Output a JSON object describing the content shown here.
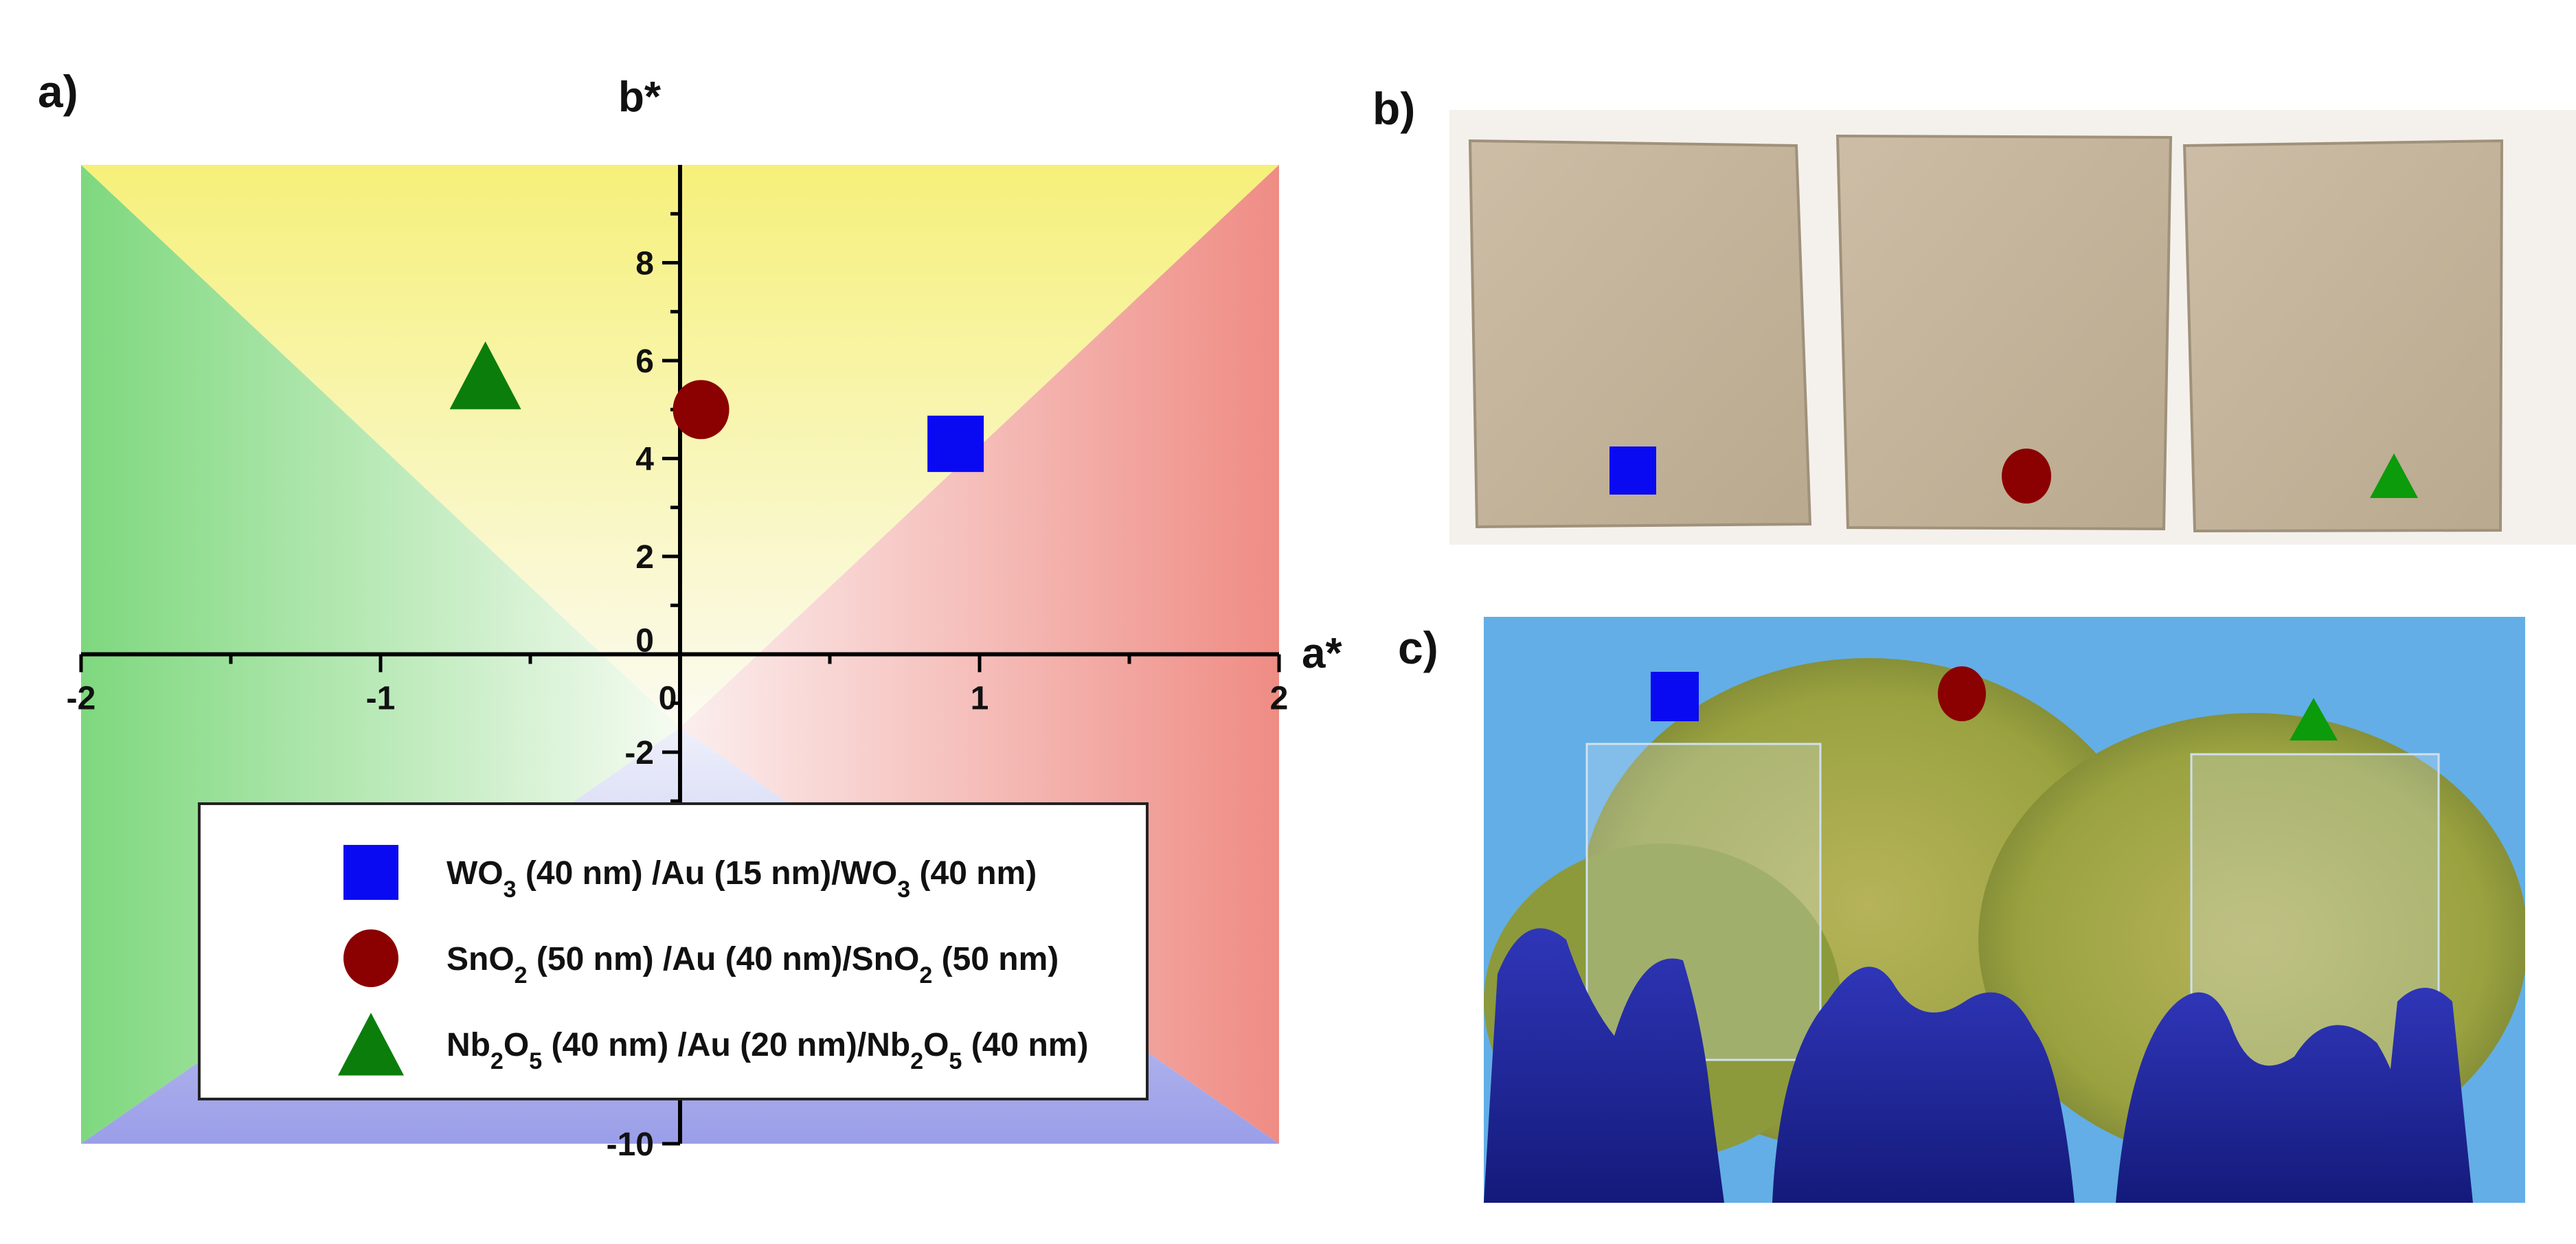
{
  "panels": {
    "a_label": "a)",
    "b_label": "b)",
    "c_label": "c)"
  },
  "chart_data": {
    "type": "scatter",
    "xlabel": "a*",
    "ylabel": "b*",
    "xlim": [
      -2,
      2
    ],
    "ylim": [
      -10,
      10
    ],
    "x_ticks": [
      -2,
      -1,
      0,
      1,
      2
    ],
    "y_ticks": [
      -10,
      -2,
      0,
      2,
      4,
      6,
      8
    ],
    "grid": false,
    "legend_position": "bottom-center",
    "background_regions": [
      {
        "name": "green",
        "color": "#7ed87e"
      },
      {
        "name": "yellow",
        "color": "#f6f07a"
      },
      {
        "name": "red",
        "color": "#f08f86"
      },
      {
        "name": "blue",
        "color": "#9a9ee8"
      }
    ],
    "series": [
      {
        "name": "WO3 (40 nm) /Au (15 nm)/WO3 (40 nm)",
        "marker": "square",
        "color": "#0a0af2",
        "points": [
          {
            "x": 0.92,
            "y": 4.3
          }
        ]
      },
      {
        "name": "SnO2 (50 nm) /Au (40 nm)/SnO2 (50 nm)",
        "marker": "circle",
        "color": "#8b0000",
        "points": [
          {
            "x": 0.07,
            "y": 5.0
          }
        ]
      },
      {
        "name": "Nb2O5 (40 nm) /Au (20 nm)/Nb2O5 (40 nm)",
        "marker": "triangle",
        "color": "#0b7d0b",
        "points": [
          {
            "x": -0.65,
            "y": 5.7
          }
        ]
      }
    ]
  },
  "legend": [
    {
      "parts": [
        [
          "WO",
          "n"
        ],
        [
          "3",
          "sub"
        ],
        [
          " (40 nm) /Au (15 nm)/WO",
          "n"
        ],
        [
          "3",
          "sub"
        ],
        [
          " (40 nm)",
          "n"
        ]
      ]
    },
    {
      "parts": [
        [
          "SnO",
          "n"
        ],
        [
          "2",
          "sub"
        ],
        [
          " (50 nm) /Au (40 nm)/SnO",
          "n"
        ],
        [
          "2",
          "sub"
        ],
        [
          " (50 nm)",
          "n"
        ]
      ]
    },
    {
      "parts": [
        [
          "Nb",
          "n"
        ],
        [
          "2",
          "sub"
        ],
        [
          "O",
          "n"
        ],
        [
          "5",
          "sub"
        ],
        [
          " (40 nm) /Au (20 nm)/Nb",
          "n"
        ],
        [
          "2",
          "sub"
        ],
        [
          "O",
          "n"
        ],
        [
          "5",
          "sub"
        ],
        [
          " (40 nm)",
          "n"
        ]
      ]
    }
  ],
  "photo_b": {
    "samples": [
      "square",
      "circle",
      "triangle"
    ]
  },
  "photo_c": {
    "samples": [
      "square",
      "circle",
      "triangle"
    ]
  }
}
